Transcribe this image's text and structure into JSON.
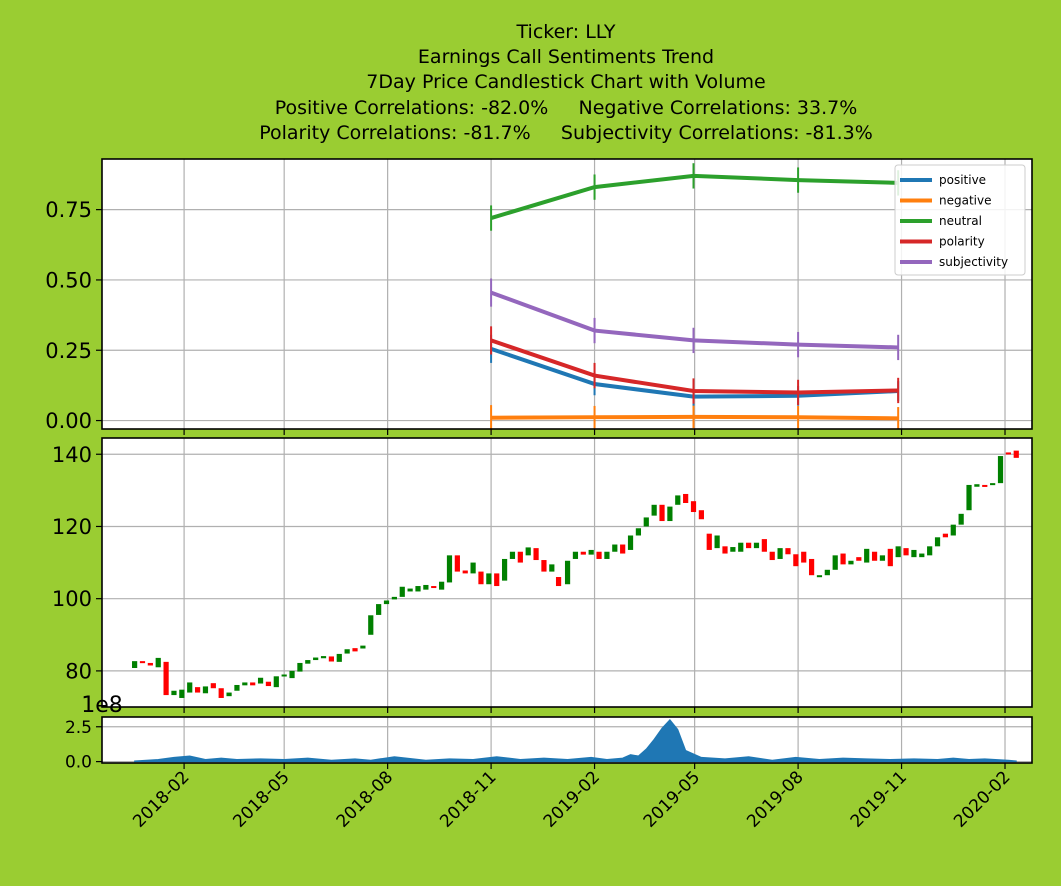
{
  "title_lines": [
    "Ticker: LLY",
    "Earnings Call Sentiments Trend",
    "7Day Price Candlestick Chart with Volume",
    "Positive Correlations: -82.0%     Negative Correlations: 33.7%",
    "Polarity Correlations: -81.7%     Subjectivity Correlations: -81.3%"
  ],
  "colors": {
    "background": "#9acd32",
    "positive": "#1f77b4",
    "negative": "#ff7f0e",
    "neutral": "#2ca02c",
    "polarity": "#d62728",
    "subjectivity": "#9467bd",
    "candle_up": "#008000",
    "candle_down": "#ff0000",
    "volume": "#1f77b4",
    "grid": "#b0b0b0"
  },
  "x_tick_labels": [
    "2018-02",
    "2018-05",
    "2018-08",
    "2018-11",
    "2019-02",
    "2019-05",
    "2019-08",
    "2019-11",
    "2020-02"
  ],
  "chart_data": [
    {
      "type": "line",
      "panel": "sentiment",
      "x": [
        "2018-11-01",
        "2019-02-01",
        "2019-04-30",
        "2019-08-01",
        "2019-10-29"
      ],
      "series": [
        {
          "name": "positive",
          "values": [
            0.255,
            0.13,
            0.085,
            0.088,
            0.105
          ],
          "err": [
            0.05,
            0.04,
            0.035,
            0.035,
            0.035
          ]
        },
        {
          "name": "negative",
          "values": [
            0.01,
            0.012,
            0.013,
            0.012,
            0.008
          ],
          "err": [
            0.045,
            0.04,
            0.04,
            0.04,
            0.04
          ]
        },
        {
          "name": "neutral",
          "values": [
            0.72,
            0.83,
            0.87,
            0.855,
            0.845
          ],
          "err": [
            0.045,
            0.045,
            0.045,
            0.045,
            0.045
          ]
        },
        {
          "name": "polarity",
          "values": [
            0.285,
            0.16,
            0.105,
            0.1,
            0.107
          ],
          "err": [
            0.05,
            0.045,
            0.045,
            0.045,
            0.045
          ]
        },
        {
          "name": "subjectivity",
          "values": [
            0.455,
            0.32,
            0.285,
            0.27,
            0.26
          ],
          "err": [
            0.05,
            0.045,
            0.045,
            0.045,
            0.045
          ]
        }
      ],
      "y_ticks": [
        "0.00",
        "0.25",
        "0.50",
        "0.75"
      ],
      "ylim": [
        -0.03,
        0.93
      ],
      "grid": true,
      "legend": "top-right"
    },
    {
      "type": "candlestick",
      "panel": "price",
      "period": "7Day",
      "candles": [
        [
          "2017-12-19",
          80.8,
          82.7
        ],
        [
          "2017-12-26",
          82.7,
          82.2
        ],
        [
          "2018-01-02",
          82.2,
          81.5
        ],
        [
          "2018-01-09",
          81.0,
          83.6
        ],
        [
          "2018-01-16",
          82.5,
          73.3
        ],
        [
          "2018-01-23",
          73.3,
          74.5
        ],
        [
          "2018-01-30",
          72.5,
          74.8
        ],
        [
          "2018-02-06",
          74.0,
          76.8
        ],
        [
          "2018-02-13",
          75.5,
          74.0
        ],
        [
          "2018-02-20",
          73.8,
          75.7
        ],
        [
          "2018-02-27",
          76.6,
          75.2
        ],
        [
          "2018-03-06",
          75.2,
          72.5
        ],
        [
          "2018-03-13",
          73.0,
          74.0
        ],
        [
          "2018-03-20",
          74.5,
          76.1
        ],
        [
          "2018-03-27",
          76.0,
          76.8
        ],
        [
          "2018-04-03",
          76.8,
          76.0
        ],
        [
          "2018-04-10",
          76.5,
          78.1
        ],
        [
          "2018-04-17",
          77.0,
          75.8
        ],
        [
          "2018-04-24",
          75.5,
          78.5
        ],
        [
          "2018-05-01",
          78.5,
          79.0
        ],
        [
          "2018-05-08",
          78.0,
          80.0
        ],
        [
          "2018-05-15",
          79.8,
          82.2
        ],
        [
          "2018-05-22",
          82.0,
          83.0
        ],
        [
          "2018-05-29",
          83.0,
          83.7
        ],
        [
          "2018-06-05",
          83.5,
          84.1
        ],
        [
          "2018-06-12",
          84.0,
          82.6
        ],
        [
          "2018-06-19",
          82.5,
          84.7
        ],
        [
          "2018-06-26",
          84.8,
          86.0
        ],
        [
          "2018-07-03",
          86.3,
          85.4
        ],
        [
          "2018-07-10",
          86.2,
          87.0
        ],
        [
          "2018-07-17",
          90.0,
          95.4
        ],
        [
          "2018-07-24",
          95.5,
          98.5
        ],
        [
          "2018-07-31",
          98.5,
          99.5
        ],
        [
          "2018-08-07",
          99.8,
          100.5
        ],
        [
          "2018-08-14",
          100.5,
          103.3
        ],
        [
          "2018-08-21",
          102.0,
          102.8
        ],
        [
          "2018-08-28",
          102.0,
          103.5
        ],
        [
          "2018-09-04",
          102.5,
          103.8
        ],
        [
          "2018-09-11",
          103.5,
          103.0
        ],
        [
          "2018-09-18",
          102.5,
          104.7
        ],
        [
          "2018-09-25",
          104.5,
          112.0
        ],
        [
          "2018-10-02",
          112.0,
          107.5
        ],
        [
          "2018-10-09",
          107.8,
          107.0
        ],
        [
          "2018-10-16",
          107.0,
          110.0
        ],
        [
          "2018-10-23",
          107.5,
          104.0
        ],
        [
          "2018-10-30",
          104.0,
          107.0
        ],
        [
          "2018-11-06",
          107.0,
          103.5
        ],
        [
          "2018-11-13",
          105.0,
          111.0
        ],
        [
          "2018-11-20",
          111.0,
          113.0
        ],
        [
          "2018-11-27",
          113.0,
          110.0
        ],
        [
          "2018-12-04",
          112.0,
          114.2
        ],
        [
          "2018-12-11",
          114.0,
          110.7
        ],
        [
          "2018-12-18",
          110.7,
          107.5
        ],
        [
          "2018-12-25",
          107.5,
          109.5
        ],
        [
          "2018-12-31",
          106.0,
          103.5
        ],
        [
          "2019-01-08",
          104.0,
          110.5
        ],
        [
          "2019-01-15",
          111.0,
          113.0
        ],
        [
          "2019-01-22",
          113.0,
          112.2
        ],
        [
          "2019-01-29",
          112.2,
          113.5
        ],
        [
          "2019-02-05",
          113.0,
          111.0
        ],
        [
          "2019-02-12",
          111.0,
          113.0
        ],
        [
          "2019-02-19",
          113.0,
          115.0
        ],
        [
          "2019-02-26",
          115.0,
          112.5
        ],
        [
          "2019-03-05",
          113.5,
          117.5
        ],
        [
          "2019-03-12",
          117.5,
          119.5
        ],
        [
          "2019-03-19",
          120.0,
          122.5
        ],
        [
          "2019-03-26",
          123.0,
          126.0
        ],
        [
          "2019-04-02",
          126.0,
          121.5
        ],
        [
          "2019-04-09",
          121.5,
          125.5
        ],
        [
          "2019-04-16",
          126.0,
          128.6
        ],
        [
          "2019-04-23",
          129.0,
          126.5
        ],
        [
          "2019-04-30",
          127.0,
          124.0
        ],
        [
          "2019-05-07",
          124.5,
          122.0
        ],
        [
          "2019-05-14",
          118.0,
          113.5
        ],
        [
          "2019-05-21",
          114.0,
          117.5
        ],
        [
          "2019-05-28",
          114.5,
          112.5
        ],
        [
          "2019-06-04",
          113.0,
          114.3
        ],
        [
          "2019-06-11",
          113.0,
          115.5
        ],
        [
          "2019-06-18",
          115.5,
          114.0
        ],
        [
          "2019-06-25",
          114.0,
          115.5
        ],
        [
          "2019-07-02",
          116.5,
          113.0
        ],
        [
          "2019-07-09",
          113.0,
          110.7
        ],
        [
          "2019-07-16",
          111.0,
          114.0
        ],
        [
          "2019-07-23",
          114.0,
          112.3
        ],
        [
          "2019-07-30",
          112.3,
          109.0
        ],
        [
          "2019-08-06",
          113.0,
          110.0
        ],
        [
          "2019-08-13",
          111.0,
          106.5
        ],
        [
          "2019-08-20",
          106.0,
          106.5
        ],
        [
          "2019-08-27",
          106.5,
          108.0
        ],
        [
          "2019-09-03",
          108.0,
          112.0
        ],
        [
          "2019-09-10",
          112.5,
          109.5
        ],
        [
          "2019-09-17",
          109.5,
          110.5
        ],
        [
          "2019-09-24",
          111.5,
          110.5
        ],
        [
          "2019-10-01",
          110.0,
          113.8
        ],
        [
          "2019-10-08",
          113.0,
          110.5
        ],
        [
          "2019-10-15",
          110.5,
          112.0
        ],
        [
          "2019-10-22",
          113.8,
          109.0
        ],
        [
          "2019-10-29",
          111.5,
          114.5
        ],
        [
          "2019-11-05",
          114.0,
          112.0
        ],
        [
          "2019-11-12",
          111.5,
          113.5
        ],
        [
          "2019-11-19",
          111.5,
          112.5
        ],
        [
          "2019-11-26",
          112.0,
          114.5
        ],
        [
          "2019-12-03",
          114.5,
          117.0
        ],
        [
          "2019-12-10",
          118.0,
          117.0
        ],
        [
          "2019-12-17",
          117.5,
          120.5
        ],
        [
          "2019-12-24",
          120.5,
          123.5
        ],
        [
          "2019-12-31",
          124.5,
          131.5
        ],
        [
          "2020-01-07",
          131.0,
          131.7
        ],
        [
          "2020-01-14",
          131.5,
          131.0
        ],
        [
          "2020-01-21",
          131.5,
          132.0
        ],
        [
          "2020-01-28",
          132.0,
          139.5
        ],
        [
          "2020-02-04",
          140.5,
          140.0
        ],
        [
          "2020-02-11",
          141.0,
          139.0
        ]
      ],
      "y_ticks": [
        "80",
        "100",
        "120",
        "140"
      ],
      "ylim": [
        70,
        144.5
      ],
      "grid": true
    },
    {
      "type": "area",
      "panel": "volume",
      "offset_label": "1e8",
      "x": [
        "2017-12-19",
        "2018-01-09",
        "2018-01-23",
        "2018-02-06",
        "2018-02-20",
        "2018-03-06",
        "2018-03-20",
        "2018-04-10",
        "2018-05-01",
        "2018-05-22",
        "2018-06-12",
        "2018-07-03",
        "2018-07-17",
        "2018-08-07",
        "2018-09-04",
        "2018-09-25",
        "2018-10-16",
        "2018-11-06",
        "2018-11-27",
        "2018-12-18",
        "2019-01-08",
        "2019-01-29",
        "2019-02-12",
        "2019-02-26",
        "2019-03-05",
        "2019-03-12",
        "2019-03-19",
        "2019-03-26",
        "2019-04-02",
        "2019-04-09",
        "2019-04-16",
        "2019-04-23",
        "2019-05-07",
        "2019-05-28",
        "2019-06-18",
        "2019-07-09",
        "2019-07-30",
        "2019-08-20",
        "2019-09-10",
        "2019-10-01",
        "2019-10-22",
        "2019-11-12",
        "2019-12-03",
        "2019-12-17",
        "2019-12-31",
        "2020-01-14",
        "2020-02-04",
        "2020-02-11"
      ],
      "values": [
        0.05,
        0.15,
        0.3,
        0.4,
        0.15,
        0.25,
        0.15,
        0.2,
        0.15,
        0.25,
        0.1,
        0.2,
        0.1,
        0.35,
        0.1,
        0.2,
        0.15,
        0.35,
        0.15,
        0.25,
        0.15,
        0.3,
        0.15,
        0.25,
        0.5,
        0.4,
        0.9,
        1.6,
        2.4,
        3.0,
        2.3,
        0.8,
        0.3,
        0.2,
        0.35,
        0.1,
        0.3,
        0.15,
        0.25,
        0.2,
        0.15,
        0.2,
        0.15,
        0.25,
        0.15,
        0.2,
        0.1,
        0.05
      ],
      "y_ticks": [
        "0.0",
        "2.5"
      ],
      "ylim": [
        -0.1,
        3.2
      ],
      "grid": true
    }
  ]
}
